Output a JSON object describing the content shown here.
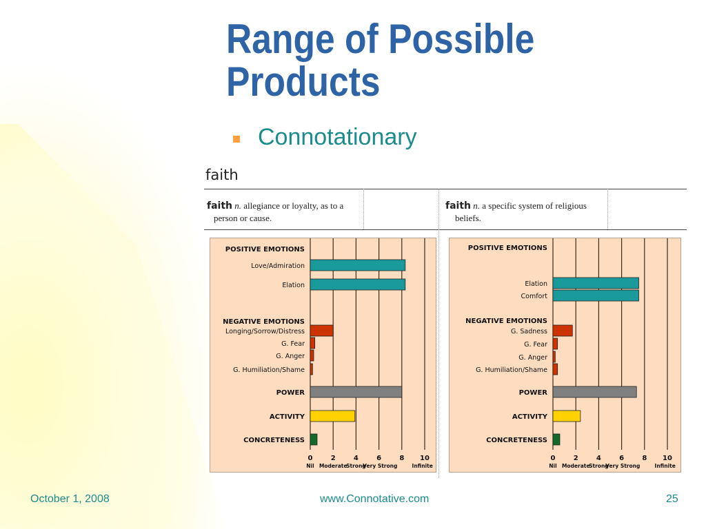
{
  "slide": {
    "title": "Range of Possible Products",
    "title_line1": "Range of Possible",
    "title_line2": "Products",
    "bullet": "Connotationary"
  },
  "figure": {
    "headword": "faith",
    "senses": [
      {
        "word": "faith",
        "pos": "n.",
        "definition_line1": "allegiance or loyalty, as to a",
        "definition_line2": "person or cause."
      },
      {
        "word": "faith",
        "pos": "n.",
        "definition_line1": "a specific system of religious",
        "definition_line2": "beliefs."
      }
    ]
  },
  "chart_data": [
    {
      "type": "bar",
      "orientation": "horizontal",
      "groups": [
        "POSITIVE EMOTIONS",
        "NEGATIVE EMOTIONS"
      ],
      "categories": [
        "Love/Admiration",
        "Elation",
        "Longing/Sorrow/Distress",
        "G. Fear",
        "G. Anger",
        "G. Humiliation/Shame",
        "POWER",
        "ACTIVITY",
        "CONCRETENESS"
      ],
      "values": [
        8.3,
        8.3,
        2.0,
        0.4,
        0.3,
        0.2,
        8.0,
        3.9,
        0.6
      ],
      "colors": [
        "#1a9a9a",
        "#1a9a9a",
        "#cc3300",
        "#cc3300",
        "#cc3300",
        "#cc3300",
        "#808080",
        "#ffd200",
        "#136a2a"
      ],
      "xlim": [
        0,
        10
      ],
      "x_ticks": [
        "0",
        "2",
        "4",
        "6",
        "8",
        "10"
      ],
      "x_tick_labels": [
        "Nil",
        "Moderate",
        "Strong",
        "Very Strong",
        "Infinite"
      ],
      "grid": true
    },
    {
      "type": "bar",
      "orientation": "horizontal",
      "groups": [
        "POSITIVE EMOTIONS",
        "NEGATIVE EMOTIONS"
      ],
      "categories": [
        "Elation",
        "Comfort",
        "G. Sadness",
        "G. Fear",
        "G. Anger",
        "G. Humiliation/Shame",
        "POWER",
        "ACTIVITY",
        "CONCRETENESS"
      ],
      "values": [
        7.5,
        7.5,
        1.7,
        0.4,
        0.2,
        0.4,
        7.3,
        2.4,
        0.6
      ],
      "colors": [
        "#1a9a9a",
        "#1a9a9a",
        "#cc3300",
        "#cc3300",
        "#cc3300",
        "#cc3300",
        "#808080",
        "#ffd200",
        "#136a2a"
      ],
      "xlim": [
        0,
        10
      ],
      "x_ticks": [
        "0",
        "2",
        "4",
        "6",
        "8",
        "10"
      ],
      "x_tick_labels": [
        "Nil",
        "Moderate",
        "Strong",
        "Very Strong",
        "Infinite"
      ],
      "grid": true
    }
  ],
  "footer": {
    "date": "October 1, 2008",
    "url": "www.Connotative.com",
    "page": "25"
  }
}
